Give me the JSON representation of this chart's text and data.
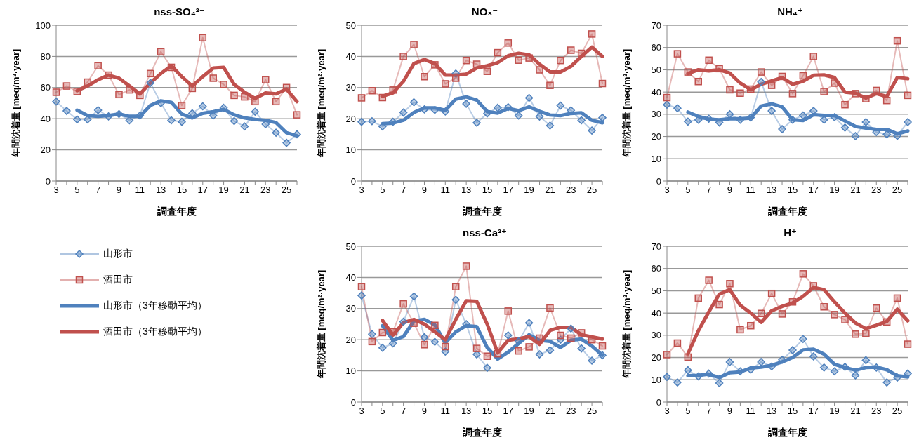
{
  "chart_data": [
    {
      "type": "line",
      "title": "nss-SO₄²⁻",
      "xlabel": "調査年度",
      "ylabel": "年間沈着量 [meq/m²·year]",
      "categories": [
        "3",
        null,
        "5",
        null,
        "7",
        null,
        "9",
        null,
        "11",
        null,
        "13",
        null,
        "15",
        null,
        "17",
        null,
        "19",
        null,
        "21",
        null,
        "23",
        null,
        "25",
        null
      ],
      "ylim": [
        0,
        100
      ],
      "yticks": [
        0,
        20,
        40,
        60,
        80,
        100
      ],
      "grid": "y",
      "legend": "bottom",
      "series": [
        {
          "name": "山形市",
          "color": "#4f81bd",
          "marker": "diamond",
          "values": [
            51,
            45,
            39.5,
            39.5,
            45.5,
            41.5,
            43,
            39,
            42,
            63,
            50,
            39,
            38,
            43.5,
            48,
            42,
            47,
            38.5,
            35,
            44.5,
            36.5,
            31,
            24.5,
            30
          ]
        },
        {
          "name": "酒田市",
          "color": "#c0504d",
          "marker": "square",
          "values": [
            57,
            61,
            57.5,
            63.5,
            74,
            68,
            55.5,
            58.5,
            55,
            69,
            83,
            73,
            48.5,
            59.5,
            92,
            66,
            62,
            55,
            54,
            51,
            65,
            51,
            60,
            42.5
          ]
        },
        {
          "name": "山形市（3年移動平均）",
          "color": "#4f81bd",
          "marker": "none",
          "values": [
            null,
            null,
            45.5,
            42,
            41.5,
            42,
            43,
            41.5,
            41.5,
            48.5,
            51.5,
            50.5,
            43,
            40.5,
            43.5,
            44.5,
            46,
            42.5,
            40.5,
            39.5,
            39,
            37.5,
            31,
            29
          ]
        },
        {
          "name": "酒田市（3年移動平均）",
          "color": "#c0504d",
          "marker": "none",
          "values": [
            null,
            null,
            58,
            61,
            65,
            68,
            66,
            61,
            56,
            63,
            69,
            74,
            67,
            61,
            67,
            72.5,
            73,
            62,
            57,
            53,
            56.5,
            56,
            59,
            51
          ]
        }
      ]
    },
    {
      "type": "line",
      "title": "NO₃⁻",
      "xlabel": "調査年度",
      "ylabel": "年間沈着量 [meq/m²·year]",
      "categories": [
        "3",
        null,
        "5",
        null,
        "7",
        null,
        "9",
        null,
        "11",
        null,
        "13",
        null,
        "15",
        null,
        "17",
        null,
        "19",
        null,
        "21",
        null,
        "23",
        null,
        "25",
        null
      ],
      "ylim": [
        0,
        50
      ],
      "yticks": [
        0,
        10,
        20,
        30,
        40,
        50
      ],
      "grid": "y",
      "series": [
        {
          "color": "#4f81bd",
          "marker": "diamond",
          "values": [
            19,
            19.2,
            17.5,
            19,
            22,
            25.3,
            23,
            22.8,
            22.3,
            34.5,
            24.8,
            18.7,
            21.7,
            23.5,
            23.7,
            21,
            26.7,
            20.7,
            17.8,
            24.2,
            22.7,
            19.5,
            16.2,
            20.3
          ]
        },
        {
          "color": "#c0504d",
          "marker": "square",
          "values": [
            26.7,
            29,
            26.8,
            29.2,
            40,
            43.8,
            33.5,
            37.3,
            31.2,
            33,
            38.7,
            37.5,
            35.2,
            41.2,
            44.3,
            38.8,
            39.5,
            35.7,
            30.7,
            38.7,
            42,
            41,
            47.2,
            31.3
          ]
        },
        {
          "color": "#4f81bd",
          "marker": "none",
          "values": [
            null,
            null,
            18.4,
            18.6,
            19.5,
            22,
            23.5,
            23.5,
            22.7,
            26.3,
            27,
            26,
            22.3,
            21.8,
            23.3,
            22.6,
            23.8,
            22.4,
            21.2,
            21,
            21.7,
            21.9,
            19.5,
            18.7
          ]
        },
        {
          "color": "#c0504d",
          "marker": "none",
          "values": [
            null,
            null,
            27.2,
            28.3,
            32,
            37.7,
            39,
            37.7,
            34,
            34,
            34.3,
            36.3,
            37,
            38,
            40.2,
            41,
            40.5,
            37.5,
            35,
            35,
            36.8,
            40,
            43,
            40
          ]
        }
      ]
    },
    {
      "type": "line",
      "title": "NH₄⁺",
      "xlabel": "調査年度",
      "ylabel": "年間沈着量 [meq/m²·year]",
      "categories": [
        "3",
        null,
        "5",
        null,
        "7",
        null,
        "9",
        null,
        "11",
        null,
        "13",
        null,
        "15",
        null,
        "17",
        null,
        "19",
        null,
        "21",
        null,
        "23",
        null,
        "25",
        null
      ],
      "ylim": [
        0,
        70
      ],
      "yticks": [
        0,
        10,
        20,
        30,
        40,
        50,
        60,
        70
      ],
      "grid": "y",
      "series": [
        {
          "color": "#4f81bd",
          "marker": "diamond",
          "values": [
            34.3,
            32.7,
            26.7,
            27.5,
            28,
            26.3,
            30,
            27.5,
            28.5,
            44.5,
            31.5,
            23.3,
            27.5,
            29.5,
            31.5,
            27.5,
            28.7,
            24,
            20.2,
            26.5,
            22,
            21,
            20.3,
            26.5
          ]
        },
        {
          "color": "#c0504d",
          "marker": "square",
          "values": [
            37.5,
            57.2,
            49,
            44.7,
            54.3,
            50.5,
            41,
            39.5,
            41.3,
            49,
            43,
            47,
            39.3,
            47.3,
            56,
            40.2,
            44,
            34.3,
            39.3,
            37,
            40.7,
            36.2,
            63,
            38.5
          ]
        },
        {
          "color": "#4f81bd",
          "marker": "none",
          "values": [
            null,
            null,
            31,
            29,
            27.8,
            27.5,
            28,
            28,
            28.3,
            33.7,
            34.7,
            33.3,
            27.5,
            27.2,
            29.8,
            29.5,
            29.5,
            27,
            24.5,
            23.8,
            23.2,
            23.2,
            21.2,
            22.5
          ]
        },
        {
          "color": "#c0504d",
          "marker": "none",
          "values": [
            null,
            null,
            48.3,
            50,
            49.5,
            50,
            48.5,
            44,
            41,
            43.5,
            45,
            46.5,
            43.5,
            44.8,
            47.5,
            47.7,
            46.5,
            40,
            39.5,
            37.3,
            39.3,
            38,
            46.5,
            46
          ]
        }
      ]
    },
    {
      "type": "line",
      "title": "nss-Ca²⁺",
      "xlabel": "調査年度",
      "ylabel": "年間沈着量 [meq/m²·year]",
      "categories": [
        "3",
        null,
        "5",
        null,
        "7",
        null,
        "9",
        null,
        "11",
        null,
        "13",
        null,
        "15",
        null,
        "17",
        null,
        "19",
        null,
        "21",
        null,
        "23",
        null,
        "25",
        null
      ],
      "ylim": [
        0,
        50
      ],
      "yticks": [
        0,
        10,
        20,
        30,
        40,
        50
      ],
      "grid": "y",
      "series": [
        {
          "color": "#4f81bd",
          "marker": "diamond",
          "values": [
            34.2,
            21.8,
            17.4,
            18.8,
            25.8,
            33.9,
            20.8,
            19.3,
            16.2,
            32.8,
            25,
            15.3,
            11,
            null,
            21.4,
            19.5,
            25.4,
            15.3,
            16.6,
            20,
            23.6,
            17.2,
            13.3,
            15
          ]
        },
        {
          "color": "#c0504d",
          "marker": "square",
          "values": [
            37,
            19.4,
            22.3,
            22.5,
            31.5,
            25.3,
            18.4,
            24.6,
            17.8,
            37,
            43.6,
            17.2,
            14.7,
            15.5,
            29.2,
            16.4,
            17.7,
            20.5,
            30.2,
            21.4,
            20.5,
            22.2,
            20,
            18
          ]
        },
        {
          "color": "#4f81bd",
          "marker": "none",
          "values": [
            null,
            null,
            24.5,
            19.8,
            21,
            26,
            26.5,
            24.8,
            19,
            22.5,
            24.5,
            24.2,
            17.5,
            13.8,
            16,
            18.8,
            21.6,
            19.8,
            19.5,
            17.5,
            19.8,
            20.2,
            18,
            15
          ]
        },
        {
          "color": "#c0504d",
          "marker": "none",
          "values": [
            null,
            null,
            26.2,
            21.5,
            25.5,
            26.5,
            25,
            22.5,
            20,
            26.5,
            32.5,
            32.3,
            25,
            15.8,
            19.8,
            20.3,
            21,
            18.5,
            23,
            24,
            24,
            21.6,
            20.9,
            20.2
          ]
        }
      ]
    },
    {
      "type": "line",
      "title": "H⁺",
      "xlabel": "調査年度",
      "ylabel": "年間沈着量 [meq/m²·year]",
      "categories": [
        "3",
        null,
        "5",
        null,
        "7",
        null,
        "9",
        null,
        "11",
        null,
        "13",
        null,
        "15",
        null,
        "17",
        null,
        "19",
        null,
        "21",
        null,
        "23",
        null,
        "25",
        null
      ],
      "ylim": [
        0,
        70
      ],
      "yticks": [
        0,
        10,
        20,
        30,
        40,
        50,
        60,
        70
      ],
      "grid": "y",
      "series": [
        {
          "color": "#4f81bd",
          "marker": "diamond",
          "values": [
            11.3,
            8.8,
            14.3,
            11.5,
            12.8,
            8.5,
            18,
            13.8,
            14.5,
            18,
            16,
            19,
            23.3,
            28.3,
            20.5,
            15.5,
            13.8,
            15.8,
            12,
            18.8,
            15.5,
            8.8,
            11,
            12.8
          ]
        },
        {
          "color": "#c0504d",
          "marker": "square",
          "values": [
            21.3,
            26.5,
            20.2,
            46.7,
            54.7,
            43.8,
            53.2,
            32.5,
            34.3,
            39.8,
            48.8,
            39.6,
            45,
            57.6,
            52.2,
            42.8,
            39.3,
            37,
            30.5,
            30.8,
            42.2,
            36,
            46.7,
            26
          ]
        },
        {
          "color": "#4f81bd",
          "marker": "none",
          "values": [
            null,
            null,
            11.8,
            12,
            12.5,
            11,
            13.2,
            13.5,
            15.3,
            15.7,
            16.5,
            18,
            20,
            23.4,
            23.7,
            21.5,
            17,
            15.5,
            14.3,
            15.5,
            15.7,
            14.5,
            11.8,
            11.3
          ]
        },
        {
          "color": "#c0504d",
          "marker": "none",
          "values": [
            null,
            null,
            21.7,
            32,
            40.5,
            48.5,
            50.5,
            43.5,
            40,
            35.8,
            41,
            43,
            44.5,
            47.5,
            51.5,
            50.5,
            45,
            40,
            35.5,
            33,
            34.5,
            36.2,
            41.7,
            36.5
          ]
        }
      ]
    }
  ]
}
